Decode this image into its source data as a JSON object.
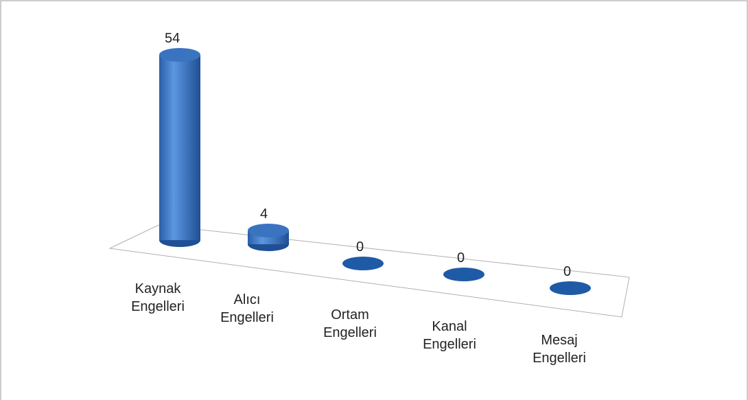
{
  "chart_data": {
    "type": "bar3d",
    "categories": [
      "Kaynak Engelleri",
      "Alıcı Engelleri",
      "Ortam Engelleri",
      "Kanal Engelleri",
      "Mesaj Engelleri"
    ],
    "values": [
      54,
      4,
      0,
      0,
      0
    ],
    "color": "#3a73c0"
  }
}
